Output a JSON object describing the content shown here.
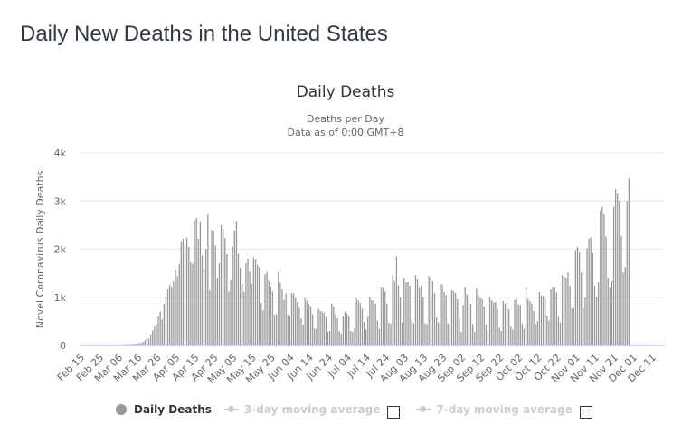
{
  "page": {
    "title": "Daily New Deaths in the United States"
  },
  "legend": {
    "items": [
      {
        "label": "Daily Deaths",
        "active": true
      },
      {
        "label": "3-day moving average",
        "active": false,
        "checkbox": false
      },
      {
        "label": "7-day moving average",
        "active": false,
        "checkbox": false
      }
    ]
  },
  "colors": {
    "bar": "#999999",
    "grid": "#e6e6e6",
    "axis": "#ccd6eb",
    "text": "#666666",
    "title": "#333333"
  },
  "chart_data": {
    "type": "bar",
    "title": "Daily Deaths",
    "subtitle_lines": [
      "Deaths per Day",
      "Data as of 0:00 GMT+8"
    ],
    "xlabel": "",
    "ylabel": "Novel Coronavirus Daily Deaths",
    "ylim": [
      0,
      4000
    ],
    "yticks": [
      0,
      1000,
      2000,
      3000,
      4000
    ],
    "ytick_labels": [
      "0",
      "1k",
      "2k",
      "3k",
      "4k"
    ],
    "grid": true,
    "legend_position": "bottom",
    "start_date": "Feb 15",
    "xtick_labels": [
      "Feb 15",
      "Feb 25",
      "Mar 06",
      "Mar 16",
      "Mar 26",
      "Apr 05",
      "Apr 15",
      "Apr 25",
      "May 05",
      "May 15",
      "May 25",
      "Jun 04",
      "Jun 14",
      "Jun 24",
      "Jul 04",
      "Jul 14",
      "Jul 24",
      "Aug 03",
      "Aug 13",
      "Aug 23",
      "Sep 02",
      "Sep 12",
      "Sep 22",
      "Oct 02",
      "Oct 12",
      "Oct 22",
      "Nov 01",
      "Nov 11",
      "Nov 21",
      "Dec 01",
      "Dec 11"
    ],
    "xtick_interval_days": 10,
    "series": [
      {
        "name": "Daily Deaths",
        "values": [
          0,
          0,
          0,
          0,
          0,
          0,
          0,
          0,
          0,
          0,
          0,
          0,
          0,
          0,
          1,
          1,
          1,
          2,
          3,
          2,
          4,
          3,
          4,
          5,
          5,
          8,
          10,
          12,
          20,
          25,
          38,
          49,
          52,
          70,
          110,
          160,
          140,
          230,
          310,
          390,
          410,
          600,
          700,
          540,
          860,
          1000,
          1160,
          1260,
          1210,
          1330,
          1570,
          1440,
          1690,
          2150,
          2220,
          2100,
          2240,
          2050,
          1730,
          1700,
          2580,
          2650,
          2220,
          2560,
          1870,
          1560,
          2000,
          2720,
          1150,
          2400,
          2370,
          2080,
          1390,
          1710,
          2500,
          2430,
          2230,
          1900,
          1120,
          1350,
          2050,
          2380,
          2570,
          1900,
          1620,
          1280,
          1110,
          1710,
          1800,
          1530,
          1280,
          1830,
          1780,
          1680,
          1630,
          880,
          730,
          1480,
          1530,
          1350,
          1220,
          1120,
          640,
          650,
          1530,
          1300,
          1170,
          950,
          1080,
          640,
          600,
          1090,
          1080,
          980,
          900,
          780,
          560,
          420,
          980,
          930,
          860,
          800,
          650,
          350,
          340,
          760,
          720,
          700,
          680,
          590,
          280,
          300,
          870,
          800,
          650,
          560,
          300,
          250,
          600,
          700,
          660,
          610,
          300,
          280,
          350,
          970,
          930,
          880,
          760,
          490,
          330,
          600,
          1000,
          940,
          930,
          870,
          520,
          350,
          1200,
          1190,
          1120,
          870,
          470,
          450,
          1460,
          1340,
          1850,
          1250,
          990,
          470,
          1400,
          1310,
          1320,
          1240,
          520,
          460,
          1460,
          1370,
          1190,
          1250,
          1000,
          460,
          440,
          1440,
          1400,
          1330,
          1090,
          580,
          480,
          1280,
          1270,
          1110,
          1050,
          460,
          430,
          1150,
          1130,
          1090,
          960,
          560,
          280,
          840,
          1200,
          1060,
          990,
          860,
          440,
          280,
          1180,
          1040,
          980,
          960,
          800,
          430,
          320,
          1020,
          930,
          890,
          900,
          760,
          370,
          300,
          920,
          870,
          900,
          750,
          390,
          330,
          940,
          960,
          850,
          840,
          450,
          350,
          1200,
          960,
          920,
          870,
          720,
          440,
          500,
          1110,
          1040,
          1030,
          980,
          620,
          520,
          1160,
          1200,
          1210,
          1100,
          590,
          470,
          1460,
          1430,
          1400,
          1520,
          1230,
          770,
          770,
          1970,
          2050,
          1930,
          1520,
          780,
          1000,
          2020,
          2220,
          2250,
          1920,
          1240,
          1010,
          1310,
          2800,
          2880,
          2720,
          2260,
          1400,
          1200,
          1340,
          2880,
          3250,
          3150,
          3000,
          2280,
          1520,
          1630,
          3000,
          3470
        ]
      }
    ]
  }
}
